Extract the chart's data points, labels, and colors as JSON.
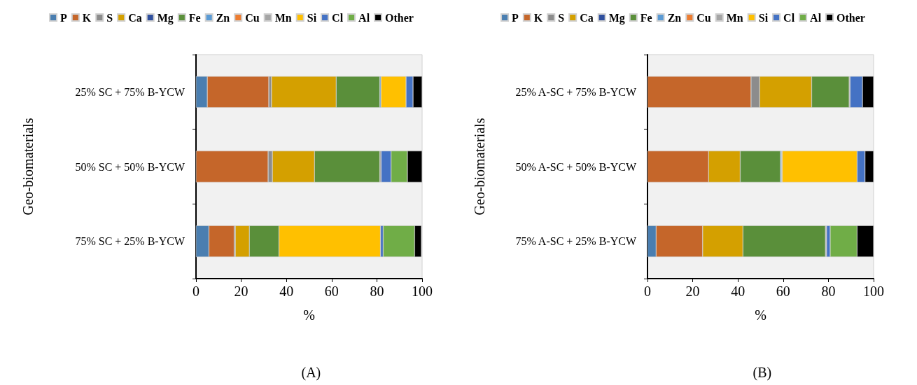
{
  "chart_data": [
    {
      "type": "bar",
      "orientation": "horizontal",
      "stacked": true,
      "xlabel": "%",
      "ylabel": "Geo-biomaterials",
      "annotations": [
        "(A)"
      ],
      "legend": "top",
      "grid": false,
      "xlim": [
        0,
        100
      ],
      "xticks": [
        0,
        20,
        40,
        60,
        80,
        100
      ],
      "categories": [
        "25% SC + 75% B-YCW",
        "50% SC + 50% B-YCW",
        "75% SC + 25% B-YCW"
      ],
      "series": [
        {
          "name": "P",
          "color": "#4a7eb0",
          "values": [
            5.0,
            null,
            5.7
          ]
        },
        {
          "name": "K",
          "color": "#c5662a",
          "values": [
            27.2,
            31.9,
            11.2
          ]
        },
        {
          "name": "S",
          "color": "#8c8c8c",
          "values": [
            1.2,
            1.9,
            0.5
          ]
        },
        {
          "name": "Ca",
          "color": "#d4a000",
          "values": [
            28.6,
            18.6,
            6.2
          ]
        },
        {
          "name": "Mg",
          "color": "#2f4f9e",
          "values": [
            null,
            null,
            null
          ]
        },
        {
          "name": "Fe",
          "color": "#5a8f3a",
          "values": [
            19.3,
            28.9,
            13.1
          ]
        },
        {
          "name": "Zn",
          "color": "#5b9bd5",
          "values": [
            0.5,
            null,
            null
          ]
        },
        {
          "name": "Cu",
          "color": "#ed7d31",
          "values": [
            null,
            null,
            null
          ]
        },
        {
          "name": "Mn",
          "color": "#a5a5a5",
          "values": [
            null,
            0.6,
            null
          ]
        },
        {
          "name": "Si",
          "color": "#ffc000",
          "values": [
            11.1,
            null,
            44.9
          ]
        },
        {
          "name": "Cl",
          "color": "#4472c4",
          "values": [
            3.1,
            4.4,
            1.2
          ]
        },
        {
          "name": "Al",
          "color": "#70ad47",
          "values": [
            null,
            7.2,
            13.9
          ]
        },
        {
          "name": "Other",
          "color": "#000000",
          "values": [
            4.0,
            6.5,
            3.0
          ]
        }
      ]
    },
    {
      "type": "bar",
      "orientation": "horizontal",
      "stacked": true,
      "xlabel": "%",
      "ylabel": "Geo-biomaterials",
      "annotations": [
        "(B)"
      ],
      "legend": "top",
      "grid": false,
      "xlim": [
        0,
        100
      ],
      "xticks": [
        0,
        20,
        40,
        60,
        80,
        100
      ],
      "categories": [
        "25% A-SC + 75% B-YCW",
        "50% A-SC + 50% B-YCW",
        "75% A-SC + 25% B-YCW"
      ],
      "series": [
        {
          "name": "P",
          "color": "#4a7eb0",
          "values": [
            null,
            null,
            3.8
          ]
        },
        {
          "name": "K",
          "color": "#c5662a",
          "values": [
            45.8,
            27.0,
            20.6
          ]
        },
        {
          "name": "S",
          "color": "#8c8c8c",
          "values": [
            3.8,
            null,
            null
          ]
        },
        {
          "name": "Ca",
          "color": "#d4a000",
          "values": [
            23.0,
            14.0,
            17.8
          ]
        },
        {
          "name": "Mg",
          "color": "#2f4f9e",
          "values": [
            null,
            null,
            null
          ]
        },
        {
          "name": "Fe",
          "color": "#5a8f3a",
          "values": [
            16.6,
            17.8,
            36.5
          ]
        },
        {
          "name": "Zn",
          "color": "#5b9bd5",
          "values": [
            null,
            0.5,
            null
          ]
        },
        {
          "name": "Cu",
          "color": "#ed7d31",
          "values": [
            null,
            null,
            null
          ]
        },
        {
          "name": "Mn",
          "color": "#a5a5a5",
          "values": [
            0.4,
            0.3,
            0.5
          ]
        },
        {
          "name": "Si",
          "color": "#ffc000",
          "values": [
            null,
            33.1,
            null
          ]
        },
        {
          "name": "Cl",
          "color": "#4472c4",
          "values": [
            5.5,
            3.5,
            1.6
          ]
        },
        {
          "name": "Al",
          "color": "#70ad47",
          "values": [
            null,
            null,
            11.9
          ]
        },
        {
          "name": "Other",
          "color": "#000000",
          "values": [
            4.9,
            3.8,
            7.3
          ]
        }
      ]
    }
  ]
}
